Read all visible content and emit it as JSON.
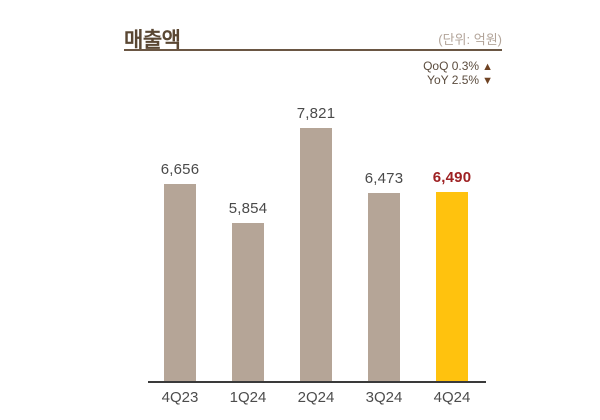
{
  "header": {
    "title": "매출액",
    "unit_label": "(단위: 억원)",
    "qoq_text": "QoQ 0.3%",
    "qoq_arrow": "▲",
    "yoy_text": "YoY 2.5%",
    "yoy_arrow": "▼"
  },
  "colors": {
    "title": "#5a4733",
    "underline": "#6a5643",
    "unit_text": "#b2a499",
    "delta_text": "#5b4c3e",
    "arrow": "#6f4323",
    "bar_default": "#b5a597",
    "bar_highlight": "#ffc20e",
    "value_label": "#4a4a4a",
    "value_label_highlight": "#9e2123",
    "category_label": "#4c4c4c",
    "axis_line": "#3a3a3a"
  },
  "chart_data": {
    "type": "bar",
    "title": "매출액",
    "unit": "억원",
    "categories": [
      "4Q23",
      "1Q24",
      "2Q24",
      "3Q24",
      "4Q24"
    ],
    "values": [
      6656,
      5854,
      7821,
      6473,
      6490
    ],
    "value_labels": [
      "6,656",
      "5,854",
      "7,821",
      "6,473",
      "6,490"
    ],
    "highlight_index": 4,
    "ylim": [
      2600,
      8000
    ],
    "grid": false,
    "legend": false,
    "annotations": [
      "QoQ 0.3% ▲",
      "YoY 2.5% ▼"
    ]
  }
}
